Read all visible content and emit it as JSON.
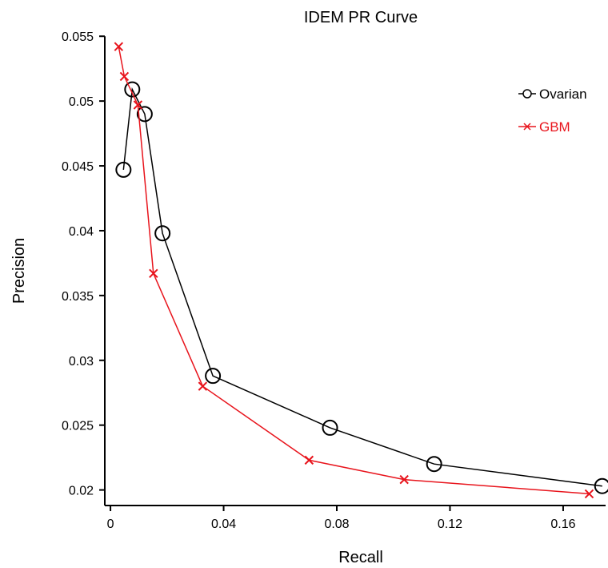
{
  "chart_data": {
    "type": "line",
    "title": "IDEM PR Curve",
    "xlabel": "Recall",
    "ylabel": "Precision",
    "xlim": [
      -0.002,
      0.175
    ],
    "ylim": [
      0.0188,
      0.0552
    ],
    "xticks": [
      0,
      0.04,
      0.08,
      0.12,
      0.16
    ],
    "xtick_labels": [
      "0",
      "0.04",
      "0.08",
      "0.12",
      "0.16"
    ],
    "yticks": [
      0.02,
      0.025,
      0.03,
      0.035,
      0.04,
      0.045,
      0.05,
      0.055
    ],
    "ytick_labels": [
      "0.02",
      "0.025",
      "0.03",
      "0.035",
      "0.04",
      "0.045",
      "0.05",
      "0.055"
    ],
    "grid": false,
    "legend_position": "top-right",
    "series": [
      {
        "name": "Ovarian",
        "color": "#000000",
        "marker": "circle",
        "x": [
          0.0046,
          0.0077,
          0.0121,
          0.0184,
          0.0362,
          0.0776,
          0.1144,
          0.1738
        ],
        "y": [
          0.0447,
          0.0509,
          0.049,
          0.0398,
          0.0288,
          0.0248,
          0.022,
          0.0203
        ]
      },
      {
        "name": "GBM",
        "color": "#e8141c",
        "marker": "x",
        "x": [
          0.0029,
          0.0049,
          0.0097,
          0.0152,
          0.0326,
          0.0702,
          0.1038,
          0.1692
        ],
        "y": [
          0.0542,
          0.0519,
          0.0497,
          0.0367,
          0.028,
          0.0223,
          0.0208,
          0.0197
        ]
      }
    ]
  }
}
